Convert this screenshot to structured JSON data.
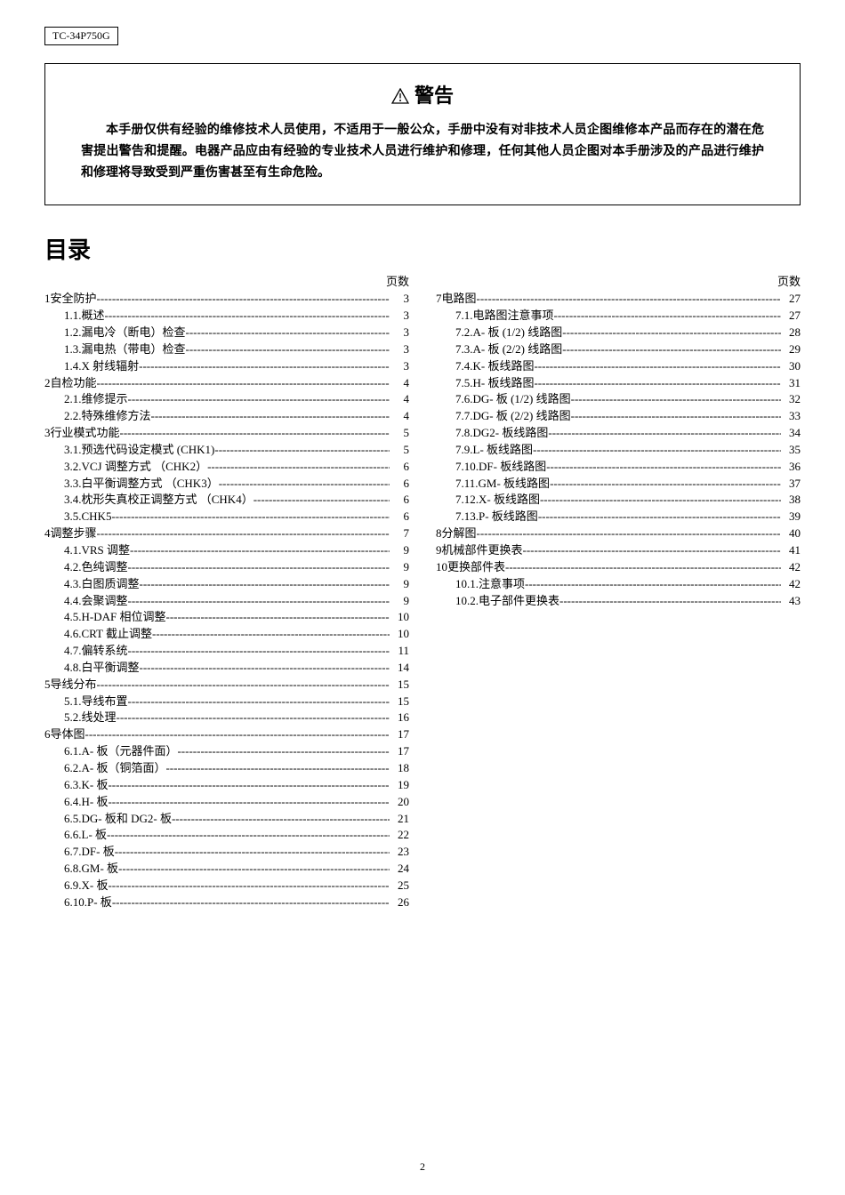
{
  "model": "TC-34P750G",
  "warning": {
    "title": "警告",
    "body": "本手册仅供有经验的维修技术人员使用，不适用于一般公众，手册中没有对非技术人员企图维修本产品而存在的潜在危害提出警告和提醒。电器产品应由有经验的专业技术人员进行维护和修理，任何其他人员企图对本手册涉及的产品进行维护和修理将导致受到严重伤害甚至有生命危险。"
  },
  "toc_heading": "目录",
  "page_label": "页数",
  "page_number": "2",
  "toc_left": [
    {
      "level": 0,
      "num": "1",
      "title": "安全防护",
      "page": "3"
    },
    {
      "level": 1,
      "num": "1.1.",
      "title": "概述",
      "page": "3"
    },
    {
      "level": 1,
      "num": "1.2.",
      "title": "漏电冷（断电）检查",
      "page": "3"
    },
    {
      "level": 1,
      "num": "1.3.",
      "title": "漏电热（带电）检查",
      "page": "3"
    },
    {
      "level": 1,
      "num": "1.4.",
      "title": "X 射线辐射",
      "page": "3"
    },
    {
      "level": 0,
      "num": "2",
      "title": "自检功能",
      "page": "4"
    },
    {
      "level": 1,
      "num": "2.1.",
      "title": "维修提示",
      "page": "4"
    },
    {
      "level": 1,
      "num": "2.2.",
      "title": "特殊维修方法",
      "page": "4"
    },
    {
      "level": 0,
      "num": "3",
      "title": "行业模式功能",
      "page": "5"
    },
    {
      "level": 1,
      "num": "3.1.",
      "title": "预选代码设定模式 (CHK1)",
      "page": "5"
    },
    {
      "level": 1,
      "num": "3.2.",
      "title": "VCJ 调整方式 （CHK2）",
      "page": "6"
    },
    {
      "level": 1,
      "num": "3.3.",
      "title": "白平衡调整方式 （CHK3）",
      "page": "6"
    },
    {
      "level": 1,
      "num": "3.4.",
      "title": "枕形失真校正调整方式 （CHK4）",
      "page": "6"
    },
    {
      "level": 1,
      "num": "3.5.",
      "title": "CHK5",
      "page": "6"
    },
    {
      "level": 0,
      "num": "4",
      "title": "调整步骤",
      "page": "7"
    },
    {
      "level": 1,
      "num": "4.1.",
      "title": "VRS 调整",
      "page": "9"
    },
    {
      "level": 1,
      "num": "4.2.",
      "title": "色纯调整",
      "page": "9"
    },
    {
      "level": 1,
      "num": "4.3.",
      "title": "白图质调整",
      "page": "9"
    },
    {
      "level": 1,
      "num": "4.4.",
      "title": "会聚调整",
      "page": "9"
    },
    {
      "level": 1,
      "num": "4.5.",
      "title": "H-DAF 相位调整",
      "page": "10"
    },
    {
      "level": 1,
      "num": "4.6.",
      "title": "CRT 截止调整",
      "page": "10"
    },
    {
      "level": 1,
      "num": "4.7.",
      "title": "偏转系统",
      "page": "11"
    },
    {
      "level": 1,
      "num": "4.8.",
      "title": "白平衡调整",
      "page": "14"
    },
    {
      "level": 0,
      "num": "5",
      "title": "导线分布",
      "page": "15"
    },
    {
      "level": 1,
      "num": "5.1.",
      "title": "导线布置",
      "page": "15"
    },
    {
      "level": 1,
      "num": "5.2.",
      "title": "线处理",
      "page": "16"
    },
    {
      "level": 0,
      "num": "6",
      "title": "导体图",
      "page": "17"
    },
    {
      "level": 1,
      "num": "6.1.",
      "title": "A- 板（元器件面）",
      "page": "17"
    },
    {
      "level": 1,
      "num": "6.2.",
      "title": "A- 板（铜箔面）",
      "page": "18"
    },
    {
      "level": 1,
      "num": "6.3.",
      "title": "K- 板",
      "page": "19"
    },
    {
      "level": 1,
      "num": "6.4.",
      "title": "H- 板",
      "page": "20"
    },
    {
      "level": 1,
      "num": "6.5.",
      "title": "DG- 板和 DG2- 板",
      "page": "21"
    },
    {
      "level": 1,
      "num": "6.6.",
      "title": "L- 板",
      "page": "22"
    },
    {
      "level": 1,
      "num": "6.7.",
      "title": "DF- 板",
      "page": "23"
    },
    {
      "level": 1,
      "num": "6.8.",
      "title": "GM- 板",
      "page": "24"
    },
    {
      "level": 1,
      "num": "6.9.",
      "title": "X- 板",
      "page": "25"
    },
    {
      "level": 1,
      "num": "6.10.",
      "title": "P- 板",
      "page": "26"
    }
  ],
  "toc_right": [
    {
      "level": 0,
      "num": "7",
      "title": "电路图",
      "page": "27"
    },
    {
      "level": 1,
      "num": "7.1.",
      "title": "电路图注意事项",
      "page": "27"
    },
    {
      "level": 1,
      "num": "7.2.",
      "title": "A- 板 (1/2) 线路图",
      "page": "28"
    },
    {
      "level": 1,
      "num": "7.3.",
      "title": "A- 板 (2/2) 线路图",
      "page": "29"
    },
    {
      "level": 1,
      "num": "7.4.",
      "title": "K- 板线路图",
      "page": "30"
    },
    {
      "level": 1,
      "num": "7.5.",
      "title": "H- 板线路图",
      "page": "31"
    },
    {
      "level": 1,
      "num": "7.6.",
      "title": "DG- 板 (1/2) 线路图",
      "page": "32"
    },
    {
      "level": 1,
      "num": "7.7.",
      "title": "DG- 板 (2/2) 线路图",
      "page": "33"
    },
    {
      "level": 1,
      "num": "7.8.",
      "title": "DG2- 板线路图",
      "page": "34"
    },
    {
      "level": 1,
      "num": "7.9.",
      "title": "L- 板线路图",
      "page": "35"
    },
    {
      "level": 1,
      "num": "7.10.",
      "title": "DF- 板线路图",
      "page": "36"
    },
    {
      "level": 1,
      "num": "7.11.",
      "title": "GM- 板线路图",
      "page": "37"
    },
    {
      "level": 1,
      "num": "7.12.",
      "title": "X- 板线路图",
      "page": "38"
    },
    {
      "level": 1,
      "num": "7.13.",
      "title": "P- 板线路图",
      "page": "39"
    },
    {
      "level": 0,
      "num": "8",
      "title": "分解图",
      "page": "40"
    },
    {
      "level": 0,
      "num": "9",
      "title": "机械部件更换表",
      "page": "41"
    },
    {
      "level": 0,
      "num": "10",
      "title": "更换部件表",
      "page": "42"
    },
    {
      "level": 1,
      "num": "10.1.",
      "title": "注意事项",
      "page": "42"
    },
    {
      "level": 1,
      "num": "10.2.",
      "title": "电子部件更换表",
      "page": "43"
    }
  ]
}
